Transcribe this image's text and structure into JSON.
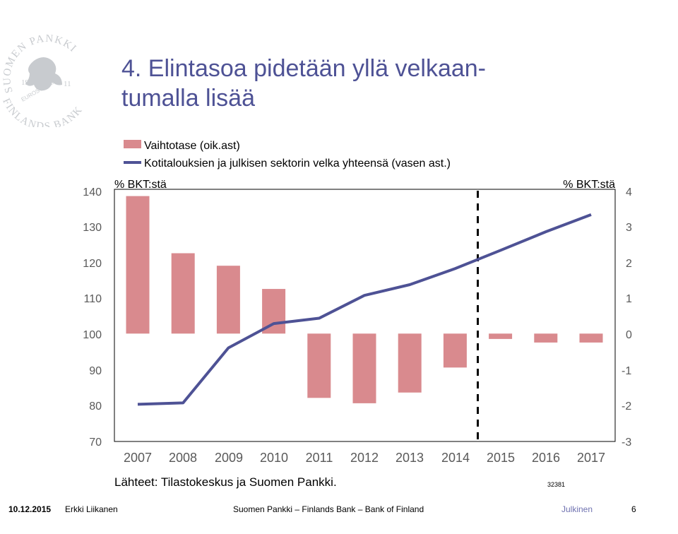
{
  "slide": {
    "title_line1": "4. Elintasoa pidetään yllä velkaan-",
    "title_line2": "tumalla lisää"
  },
  "logo": {
    "text_outer": "SUOMEN PANKKI · FINLANDS BANK",
    "text_inner": "EUROSYSTEM",
    "year_left": "19",
    "year_right": "11",
    "color": "#c8cbcf"
  },
  "colors": {
    "title": "#4e5295",
    "bar": "#d98a8e",
    "line": "#4e5295",
    "footer_accent": "#6f72b0"
  },
  "chart_data": {
    "type": "bar+line",
    "categories": [
      "2007",
      "2008",
      "2009",
      "2010",
      "2011",
      "2012",
      "2013",
      "2014",
      "2015",
      "2016",
      "2017"
    ],
    "left_axis": {
      "label": "% BKT:stä",
      "ticks": [
        "140",
        "130",
        "120",
        "110",
        "100",
        "90",
        "80",
        "70"
      ],
      "ylim": [
        70,
        140
      ]
    },
    "right_axis": {
      "label": "% BKT:stä",
      "ticks": [
        "4",
        "3",
        "2",
        "1",
        "0",
        "-1",
        "-2",
        "-3"
      ],
      "ylim": [
        -3,
        4
      ]
    },
    "series": [
      {
        "name": "Vaihtotase (oik.ast)",
        "type": "bar",
        "axis": "right",
        "values": [
          3.85,
          2.25,
          1.9,
          1.25,
          -1.8,
          -1.95,
          -1.65,
          -0.95,
          -0.15,
          -0.25,
          -0.25
        ]
      },
      {
        "name": "Kotitalouksien ja julkisen sektorin velka yhteensä (vasen ast.)",
        "type": "line",
        "axis": "left",
        "values": [
          80.2,
          80.6,
          96.0,
          102.8,
          104.3,
          110.7,
          113.7,
          118.2,
          123.3,
          128.5,
          133.3
        ]
      }
    ],
    "forecast_divider_after": "2014",
    "source": "Lähteet: Tilastokeskus ja Suomen Pankki.",
    "chart_id": "32381",
    "grid": false,
    "legend": "top-left"
  },
  "footer": {
    "date": "10.12.2015",
    "author": "Erkki Liikanen",
    "organization": "Suomen Pankki – Finlands Bank – Bank of Finland",
    "classification": "Julkinen",
    "page": "6"
  }
}
